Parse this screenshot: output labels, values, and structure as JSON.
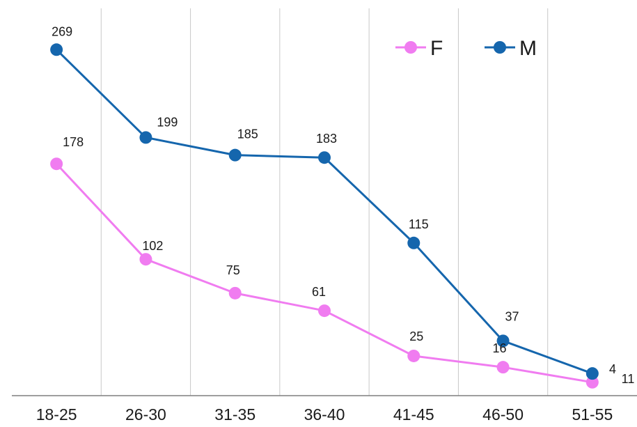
{
  "chart_data": {
    "type": "line",
    "categories": [
      "18-25",
      "26-30",
      "31-35",
      "36-40",
      "41-45",
      "46-50",
      "51-55"
    ],
    "series": [
      {
        "name": "F",
        "color": "#f07cf0",
        "values": [
          178,
          102,
          75,
          61,
          25,
          16,
          4
        ]
      },
      {
        "name": "M",
        "color": "#1566ad",
        "values": [
          269,
          199,
          185,
          183,
          115,
          37,
          11
        ]
      }
    ],
    "data_labels": {
      "F": [
        "178",
        "102",
        "75",
        "61",
        "25",
        "16",
        "4"
      ],
      "M": [
        "269",
        "199",
        "185",
        "183",
        "115",
        "37",
        "11"
      ]
    },
    "title": "",
    "xlabel": "",
    "ylabel": "",
    "ylim": [
      0,
      300
    ],
    "grid": "vertical",
    "legend_position": "top-right",
    "axis_color": "#7f7f7f",
    "grid_color": "#c8c8c8"
  }
}
